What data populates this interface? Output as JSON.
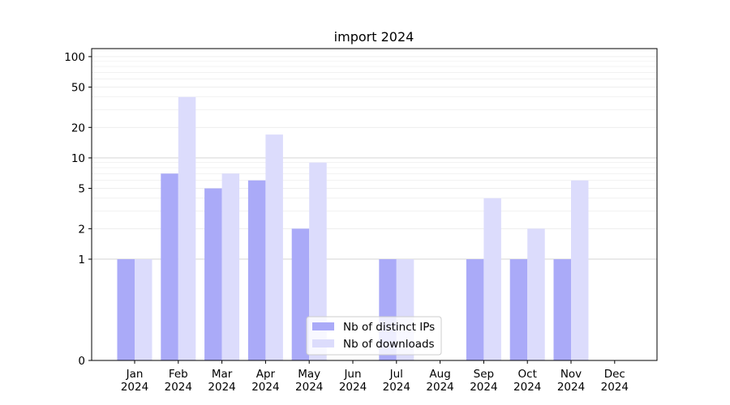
{
  "chart_data": {
    "type": "bar",
    "title": "import 2024",
    "xlabel": "",
    "ylabel": "",
    "scale": "symlog",
    "ylim": [
      0,
      120
    ],
    "yticks": [
      0,
      1,
      2,
      5,
      10,
      20,
      50,
      100
    ],
    "ytick_labels": [
      "0",
      "1",
      "2",
      "5",
      "10",
      "20",
      "50",
      "100"
    ],
    "categories": [
      [
        "Jan",
        "2024"
      ],
      [
        "Feb",
        "2024"
      ],
      [
        "Mar",
        "2024"
      ],
      [
        "Apr",
        "2024"
      ],
      [
        "May",
        "2024"
      ],
      [
        "Jun",
        "2024"
      ],
      [
        "Jul",
        "2024"
      ],
      [
        "Aug",
        "2024"
      ],
      [
        "Sep",
        "2024"
      ],
      [
        "Oct",
        "2024"
      ],
      [
        "Nov",
        "2024"
      ],
      [
        "Dec",
        "2024"
      ]
    ],
    "series": [
      {
        "name": "Nb of distinct IPs",
        "color": "#aaaaf8",
        "values": [
          1,
          7,
          5,
          6,
          2,
          0,
          1,
          0,
          1,
          1,
          1,
          0
        ]
      },
      {
        "name": "Nb of downloads",
        "color": "#dcdcfc",
        "values": [
          1,
          40,
          7,
          17,
          9,
          0,
          1,
          0,
          4,
          2,
          6,
          0
        ]
      }
    ],
    "legend": "bottom-center",
    "grid": true
  }
}
